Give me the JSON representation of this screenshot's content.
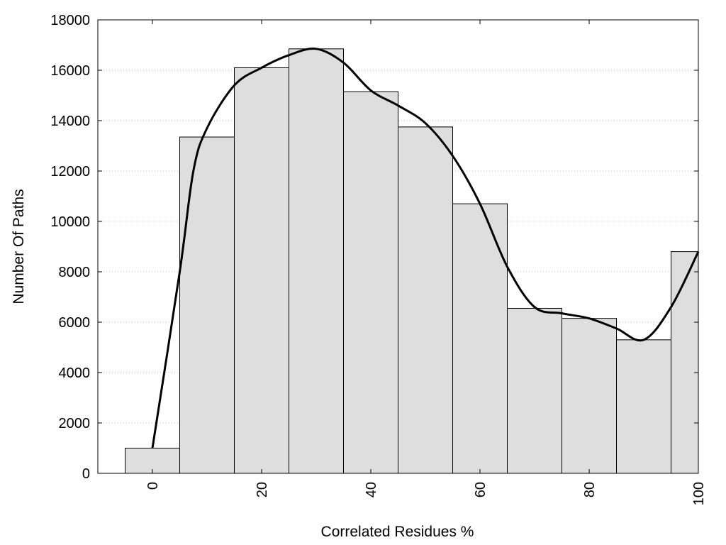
{
  "chart_data": {
    "type": "bar",
    "title": "",
    "xlabel": "Correlated Residues %",
    "ylabel": "Number Of Paths",
    "x": [
      0,
      10,
      20,
      30,
      40,
      50,
      60,
      70,
      80,
      90,
      100
    ],
    "values": [
      1000,
      13350,
      16100,
      16850,
      15150,
      13750,
      10700,
      6550,
      6150,
      5300,
      8800
    ],
    "bar_width": 10,
    "bar_color": "#dedede",
    "curve_color": "#000000",
    "curve": [
      [
        0,
        1000
      ],
      [
        5,
        8000
      ],
      [
        7.5,
        12000
      ],
      [
        10,
        13700
      ],
      [
        15,
        15400
      ],
      [
        20,
        16100
      ],
      [
        25,
        16600
      ],
      [
        30,
        16850
      ],
      [
        35,
        16300
      ],
      [
        40,
        15200
      ],
      [
        45,
        14600
      ],
      [
        50,
        13900
      ],
      [
        55,
        12600
      ],
      [
        60,
        10700
      ],
      [
        65,
        8200
      ],
      [
        70,
        6600
      ],
      [
        75,
        6350
      ],
      [
        80,
        6150
      ],
      [
        85,
        5750
      ],
      [
        90,
        5300
      ],
      [
        95,
        6600
      ],
      [
        100,
        8800
      ]
    ],
    "xlim": [
      -10,
      100
    ],
    "ylim": [
      0,
      18000
    ],
    "yticks": [
      0,
      2000,
      4000,
      6000,
      8000,
      10000,
      12000,
      14000,
      16000,
      18000
    ],
    "xticks": [
      0,
      20,
      40,
      60,
      80,
      100
    ],
    "grid": "horizontal-dotted",
    "legend": "none"
  }
}
